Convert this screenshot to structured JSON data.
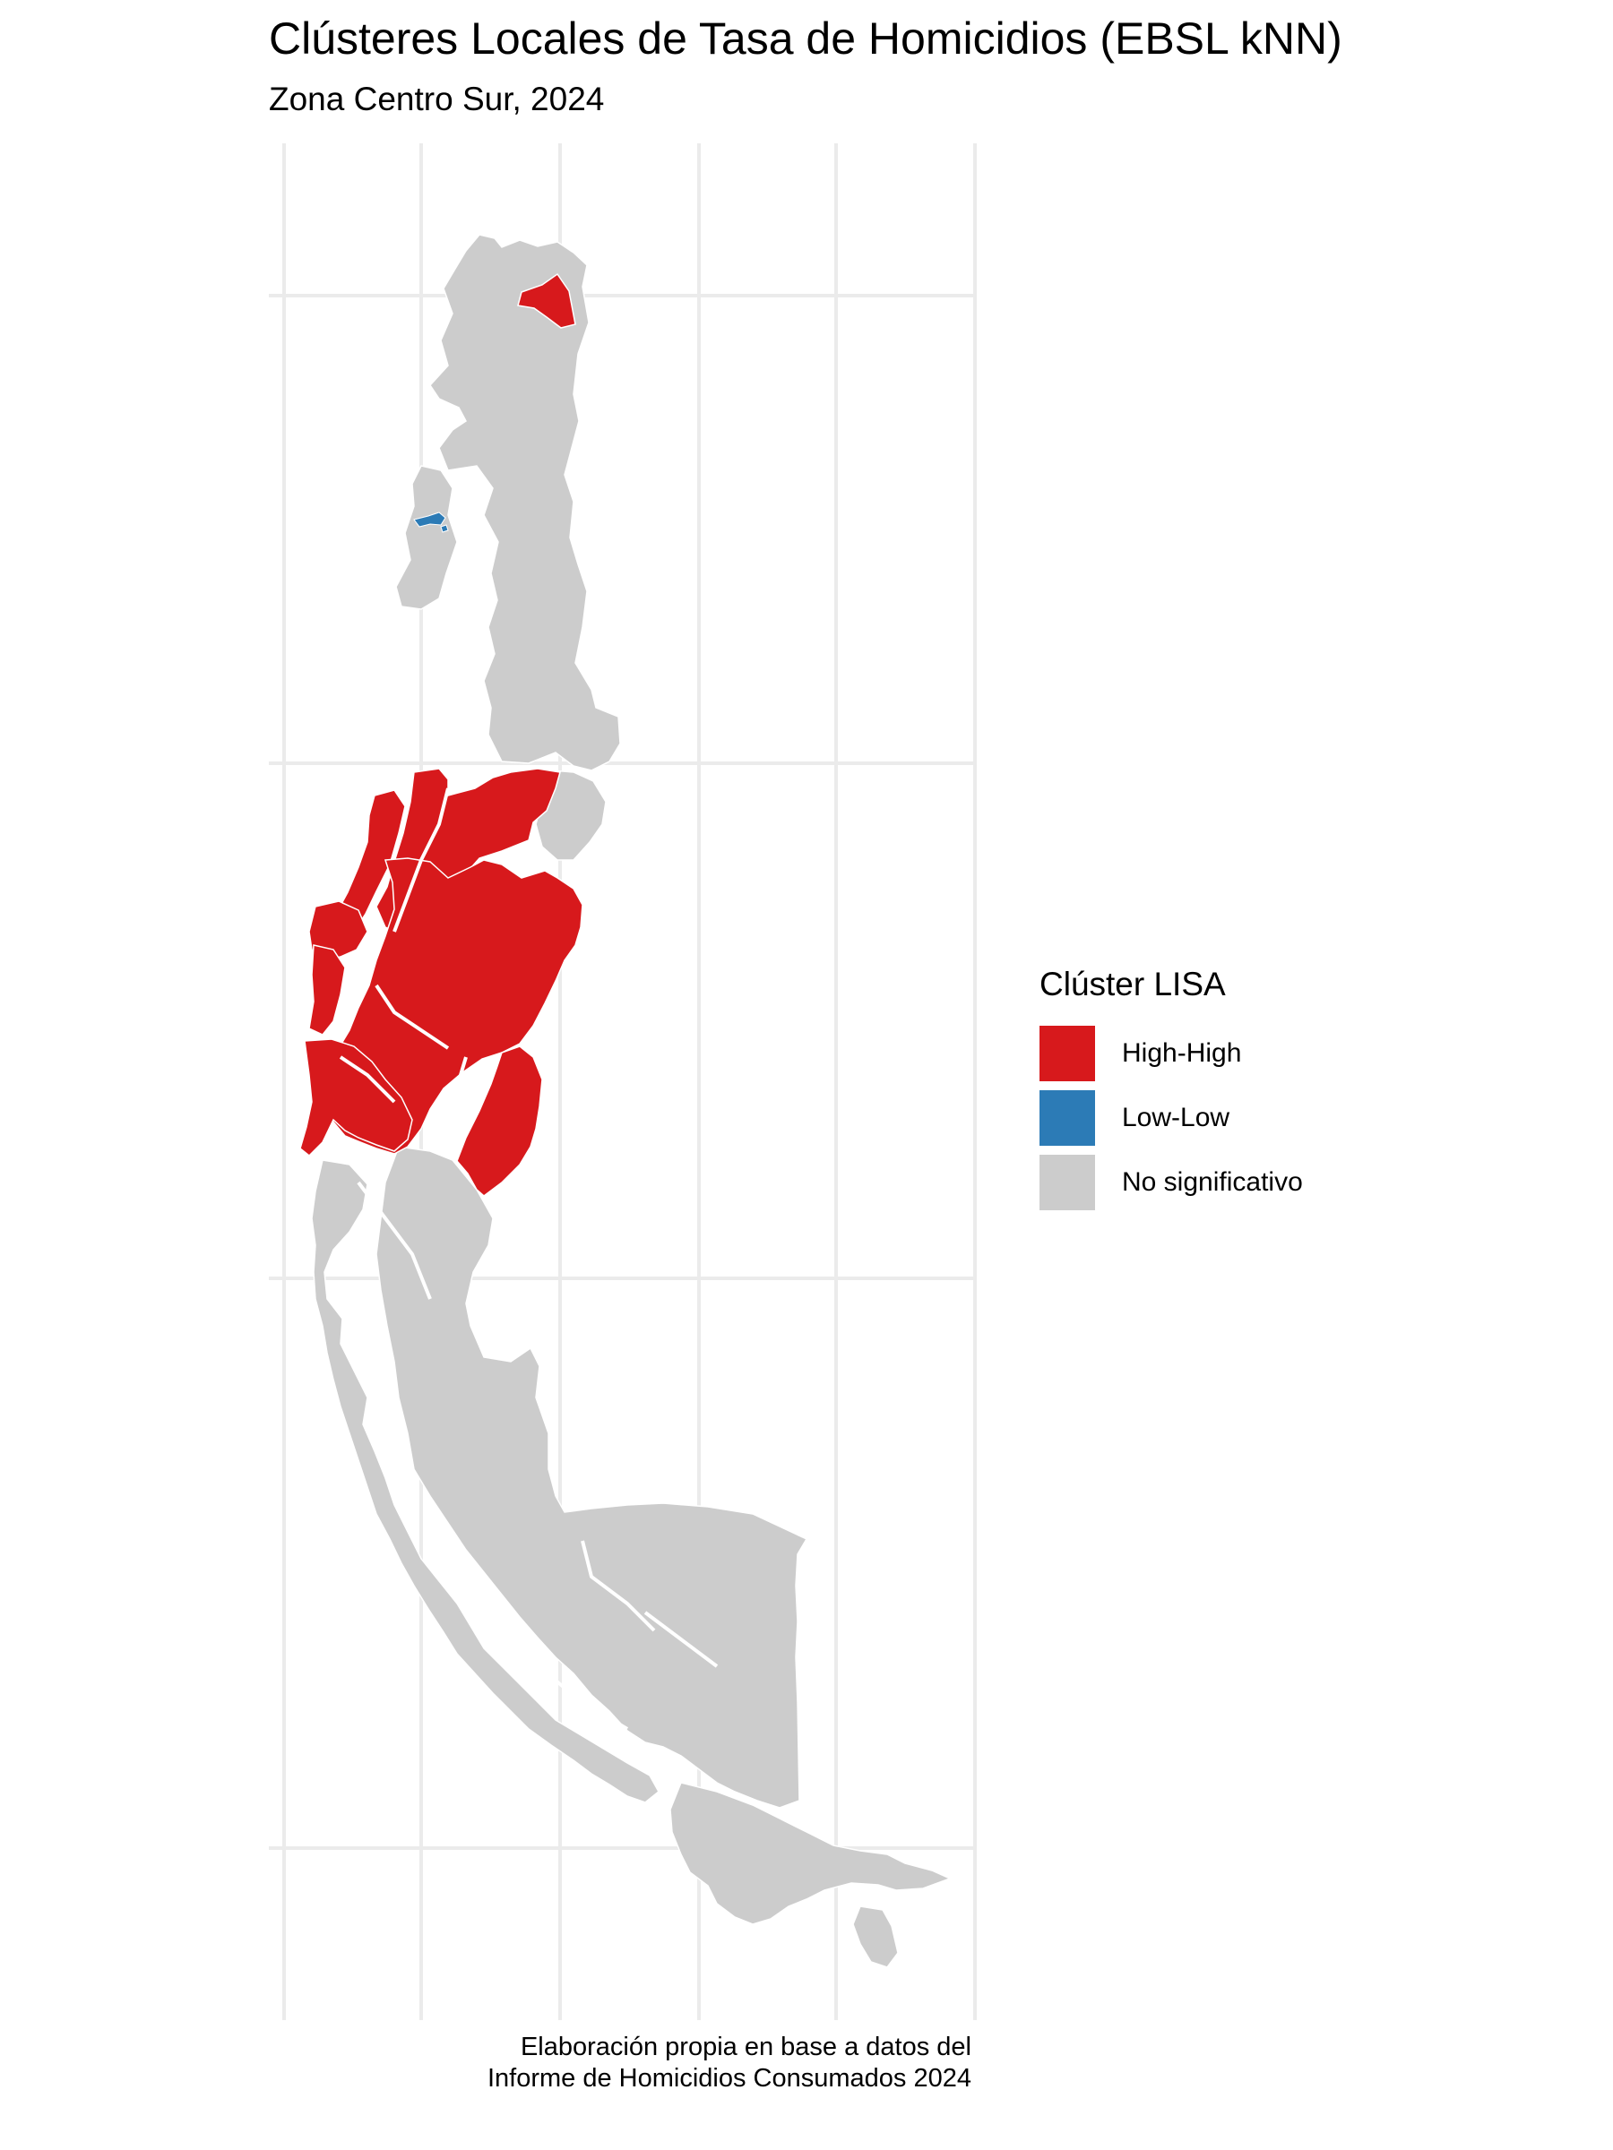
{
  "title": "Clústeres Locales de Tasa de Homicidios (EBSL kNN)",
  "subtitle": "Zona Centro Sur, 2024",
  "colors": {
    "high_high": "#d7191c",
    "low_low": "#2c7bb6",
    "not_significant": "#cccccc",
    "grid": "#ebebeb",
    "border": "#ffffff"
  },
  "legend": {
    "title": "Clúster LISA",
    "items": [
      {
        "label": "High-High",
        "color": "#d7191c"
      },
      {
        "label": "Low-Low",
        "color": "#2c7bb6"
      },
      {
        "label": "No significativo",
        "color": "#cccccc"
      }
    ]
  },
  "caption": {
    "line1": "Elaboración propia en base a datos del",
    "line2": "Informe de Homicidios Consumados 2024"
  }
}
